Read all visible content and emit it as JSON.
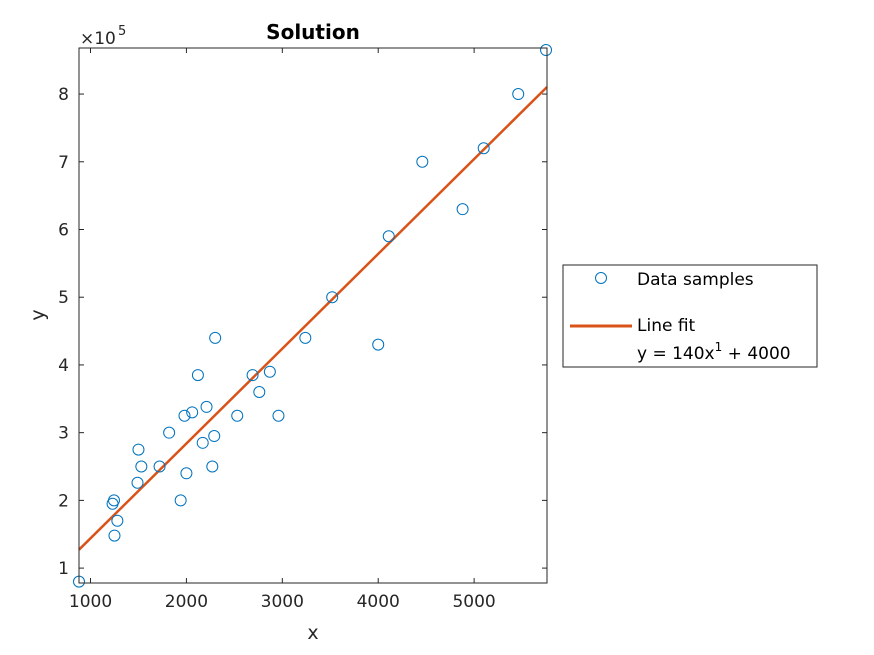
{
  "chart_data": {
    "type": "scatter",
    "title": "Solution",
    "xlabel": "x",
    "ylabel": "y",
    "y_exponent": "5",
    "y_multiplier": "×10",
    "xlim": [
      880,
      5760
    ],
    "ylim": [
      78000,
      868000
    ],
    "x_ticks": [
      1000,
      2000,
      3000,
      4000,
      5000
    ],
    "x_tick_labels": [
      "1000",
      "2000",
      "3000",
      "4000",
      "5000"
    ],
    "y_ticks": [
      100000,
      200000,
      300000,
      400000,
      500000,
      600000,
      700000,
      800000
    ],
    "y_tick_labels": [
      "1",
      "2",
      "3",
      "4",
      "5",
      "6",
      "7",
      "8"
    ],
    "grid": false,
    "legend_position": "outside-right",
    "series": [
      {
        "name": "Data samples",
        "marker": "circle",
        "color": "#0072BD",
        "points": [
          [
            880,
            80000
          ],
          [
            1230,
            195000
          ],
          [
            1245,
            200000
          ],
          [
            1250,
            148000
          ],
          [
            1280,
            170000
          ],
          [
            1490,
            226000
          ],
          [
            1500,
            275000
          ],
          [
            1530,
            250000
          ],
          [
            1720,
            250000
          ],
          [
            1820,
            300000
          ],
          [
            1940,
            200000
          ],
          [
            1980,
            325000
          ],
          [
            2000,
            240000
          ],
          [
            2060,
            330000
          ],
          [
            2120,
            385000
          ],
          [
            2170,
            285000
          ],
          [
            2210,
            338000
          ],
          [
            2270,
            250000
          ],
          [
            2290,
            295000
          ],
          [
            2300,
            440000
          ],
          [
            2530,
            325000
          ],
          [
            2690,
            385000
          ],
          [
            2760,
            360000
          ],
          [
            2870,
            390000
          ],
          [
            2960,
            325000
          ],
          [
            3240,
            440000
          ],
          [
            3520,
            500000
          ],
          [
            4000,
            430000
          ],
          [
            4110,
            590000
          ],
          [
            4460,
            700000
          ],
          [
            4880,
            630000
          ],
          [
            5100,
            720000
          ],
          [
            5460,
            800000
          ],
          [
            5750,
            865000
          ]
        ]
      },
      {
        "name": "Line fit",
        "equation_base": "y = 140x",
        "equation_exp": "1",
        "equation_tail": " + 4000",
        "color": "#D95319",
        "type": "line",
        "slope": 140,
        "intercept": 4000
      }
    ]
  }
}
